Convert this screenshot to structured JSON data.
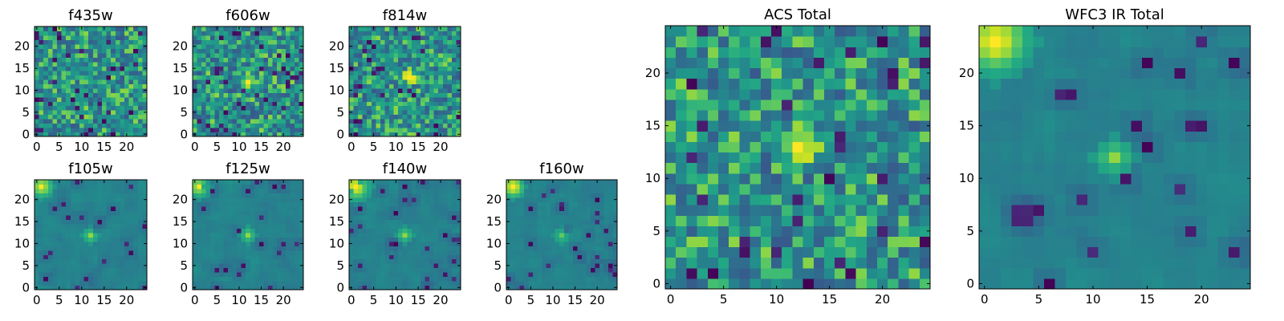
{
  "chart_data": [
    {
      "type": "heatmap",
      "title": "f435w",
      "xticks": [
        0,
        5,
        10,
        15,
        20
      ],
      "yticks": [
        0,
        5,
        10,
        15,
        20
      ],
      "xlim": [
        0,
        24
      ],
      "ylim": [
        0,
        24
      ],
      "grid_size": 25,
      "colormap": "viridis",
      "pattern": "noise",
      "seed": 11,
      "hotspots": []
    },
    {
      "type": "heatmap",
      "title": "f606w",
      "xticks": [
        0,
        5,
        10,
        15,
        20
      ],
      "yticks": [
        0,
        5,
        10,
        15,
        20
      ],
      "xlim": [
        0,
        24
      ],
      "ylim": [
        0,
        24
      ],
      "grid_size": 25,
      "colormap": "viridis",
      "pattern": "noise",
      "seed": 23,
      "hotspots": [
        {
          "x": 12,
          "y": 12,
          "radius": 2,
          "value": 0.95
        }
      ]
    },
    {
      "type": "heatmap",
      "title": "f814w",
      "xticks": [
        0,
        5,
        10,
        15,
        20
      ],
      "yticks": [
        0,
        5,
        10,
        15,
        20
      ],
      "xlim": [
        0,
        24
      ],
      "ylim": [
        0,
        24
      ],
      "grid_size": 25,
      "colormap": "viridis",
      "pattern": "noise",
      "seed": 37,
      "hotspots": [
        {
          "x": 13,
          "y": 13,
          "radius": 2,
          "value": 1.0
        }
      ]
    },
    {
      "type": "heatmap",
      "title": "f105w",
      "xticks": [
        0,
        5,
        10,
        15,
        20
      ],
      "yticks": [
        0,
        5,
        10,
        15,
        20
      ],
      "xlim": [
        0,
        24
      ],
      "ylim": [
        0,
        24
      ],
      "grid_size": 25,
      "colormap": "viridis",
      "pattern": "smooth",
      "seed": 41,
      "hotspots": [
        {
          "x": 1,
          "y": 23,
          "radius": 3,
          "value": 0.95
        },
        {
          "x": 12,
          "y": 12,
          "radius": 2,
          "value": 0.85
        }
      ]
    },
    {
      "type": "heatmap",
      "title": "f125w",
      "xticks": [
        0,
        5,
        10,
        15,
        20
      ],
      "yticks": [
        0,
        5,
        10,
        15,
        20
      ],
      "xlim": [
        0,
        24
      ],
      "ylim": [
        0,
        24
      ],
      "grid_size": 25,
      "colormap": "viridis",
      "pattern": "smooth",
      "seed": 53,
      "hotspots": [
        {
          "x": 1,
          "y": 23,
          "radius": 3,
          "value": 0.95
        },
        {
          "x": 12,
          "y": 12,
          "radius": 2,
          "value": 0.85
        }
      ]
    },
    {
      "type": "heatmap",
      "title": "f140w",
      "xticks": [
        0,
        5,
        10,
        15,
        20
      ],
      "yticks": [
        0,
        5,
        10,
        15,
        20
      ],
      "xlim": [
        0,
        24
      ],
      "ylim": [
        0,
        24
      ],
      "grid_size": 25,
      "colormap": "viridis",
      "pattern": "smooth",
      "seed": 67,
      "hotspots": [
        {
          "x": 1,
          "y": 23,
          "radius": 4,
          "value": 1.0
        },
        {
          "x": 12,
          "y": 12,
          "radius": 2,
          "value": 0.85
        }
      ]
    },
    {
      "type": "heatmap",
      "title": "f160w",
      "xticks": [
        0,
        5,
        10,
        15,
        20
      ],
      "yticks": [
        0,
        5,
        10,
        15,
        20
      ],
      "xlim": [
        0,
        24
      ],
      "ylim": [
        0,
        24
      ],
      "grid_size": 25,
      "colormap": "viridis",
      "pattern": "smooth",
      "seed": 79,
      "hotspots": [
        {
          "x": 1,
          "y": 23,
          "radius": 3,
          "value": 1.0
        },
        {
          "x": 12,
          "y": 12,
          "radius": 2,
          "value": 0.8
        }
      ]
    },
    {
      "type": "heatmap",
      "title": "ACS Total",
      "xticks": [
        0,
        5,
        10,
        15,
        20
      ],
      "yticks": [
        0,
        5,
        10,
        15,
        20
      ],
      "xlim": [
        0,
        24
      ],
      "ylim": [
        0,
        24
      ],
      "grid_size": 25,
      "colormap": "viridis",
      "pattern": "noise",
      "seed": 97,
      "hotspots": [
        {
          "x": 12,
          "y": 13,
          "radius": 2,
          "value": 1.0
        }
      ]
    },
    {
      "type": "heatmap",
      "title": "WFC3 IR Total",
      "xticks": [
        0,
        5,
        10,
        15,
        20
      ],
      "yticks": [
        0,
        5,
        10,
        15,
        20
      ],
      "xlim": [
        0,
        24
      ],
      "ylim": [
        0,
        24
      ],
      "grid_size": 25,
      "colormap": "viridis",
      "pattern": "smooth",
      "seed": 101,
      "hotspots": [
        {
          "x": 1,
          "y": 23,
          "radius": 4,
          "value": 1.0
        },
        {
          "x": 12,
          "y": 12,
          "radius": 2,
          "value": 0.85
        }
      ]
    }
  ]
}
